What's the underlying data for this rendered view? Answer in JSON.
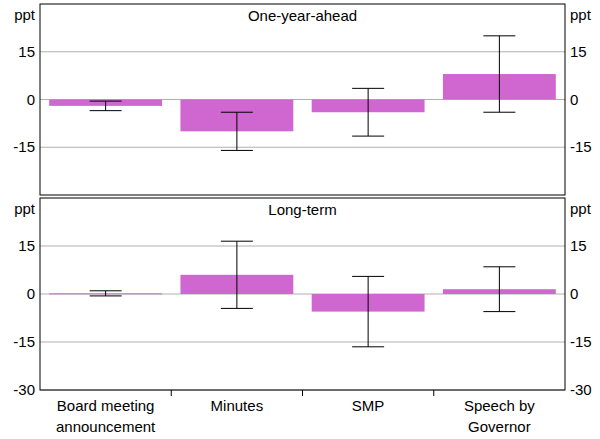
{
  "chart_data": [
    {
      "type": "bar",
      "title": "One-year-ahead",
      "y_label": "ppt",
      "categories": [
        "Board meeting announcement",
        "Minutes",
        "SMP",
        "Speech by Governor"
      ],
      "values": [
        -2,
        -10,
        -4,
        8
      ],
      "errors": [
        1.5,
        6,
        7.5,
        12
      ],
      "color": "#d066d0",
      "ylim": [
        -30,
        30
      ],
      "yticks": [
        -15,
        0,
        15
      ],
      "grid": true,
      "tick_labels": "y"
    },
    {
      "type": "bar",
      "title": "Long-term",
      "y_label": "ppt",
      "categories": [
        "Board meeting announcement",
        "Minutes",
        "SMP",
        "Speech by Governor"
      ],
      "values": [
        0.2,
        6,
        -5.5,
        1.5
      ],
      "errors": [
        0.8,
        10.5,
        11,
        7
      ],
      "color": "#d066d0",
      "ylim": [
        -30,
        30
      ],
      "yticks": [
        -30,
        -15,
        0,
        15
      ],
      "grid": true
    }
  ]
}
